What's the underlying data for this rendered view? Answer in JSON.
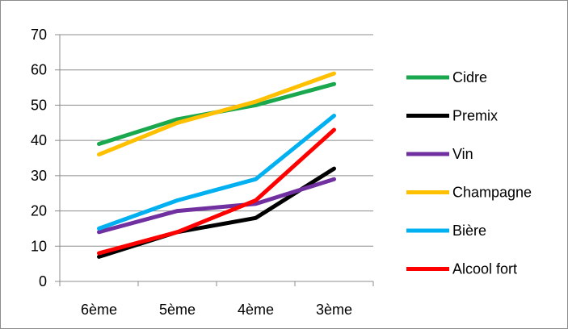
{
  "chart_data": {
    "type": "line",
    "title": "",
    "xlabel": "",
    "ylabel": "",
    "categories": [
      "6ème",
      "5ème",
      "4ème",
      "3ème"
    ],
    "ylim": [
      0,
      70
    ],
    "yticks": [
      0,
      10,
      20,
      30,
      40,
      50,
      60,
      70
    ],
    "grid": "horizontal",
    "legend_position": "right",
    "series": [
      {
        "name": "Cidre",
        "color": "#1aa84f",
        "values": [
          39,
          46,
          50,
          56
        ]
      },
      {
        "name": "Premix",
        "color": "#000000",
        "values": [
          7,
          14,
          18,
          32
        ]
      },
      {
        "name": "Vin",
        "color": "#7030a0",
        "values": [
          14,
          20,
          22,
          29
        ]
      },
      {
        "name": "Champagne",
        "color": "#ffc000",
        "values": [
          36,
          45,
          51,
          59
        ]
      },
      {
        "name": "Bière",
        "color": "#00b0f0",
        "values": [
          15,
          23,
          29,
          47
        ]
      },
      {
        "name": "Alcool fort",
        "color": "#ff0000",
        "values": [
          8,
          14,
          23,
          43
        ]
      }
    ]
  }
}
